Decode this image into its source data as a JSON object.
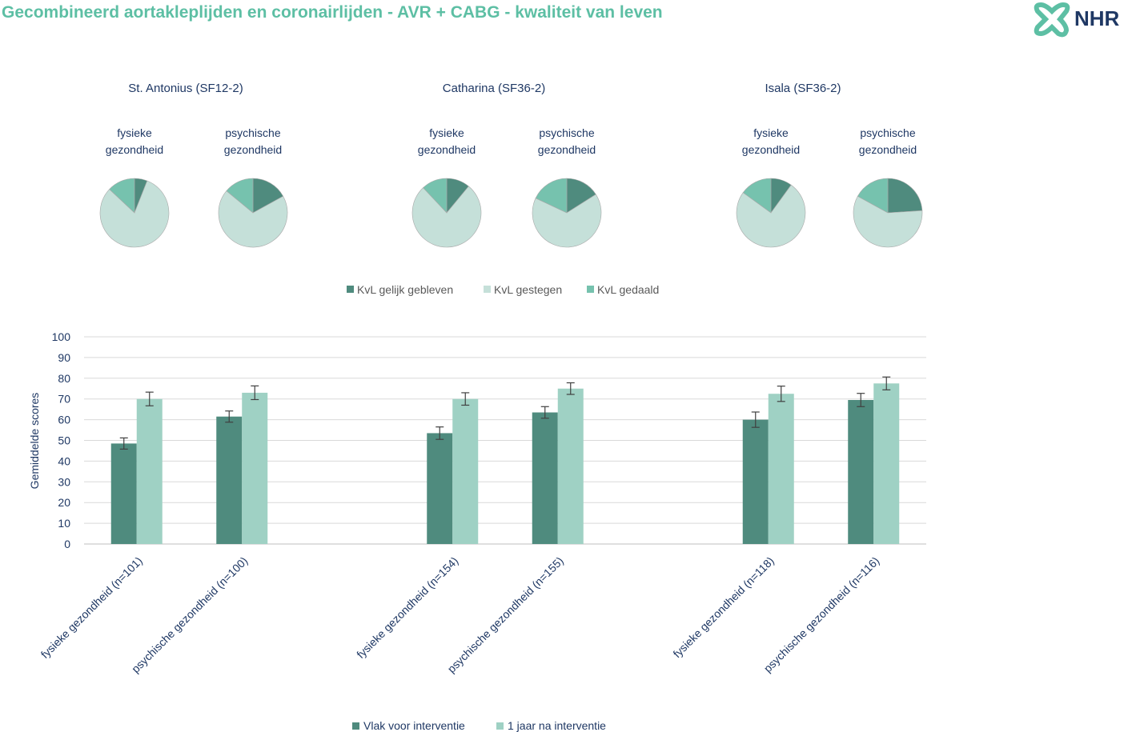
{
  "title": "Gecombineerd aortakleplijden en coronairlijden - AVR + CABG - kwaliteit van leven",
  "logo_text": "NHR",
  "colors": {
    "title": "#5dbfa4",
    "gelijk": "#4f8b7e",
    "gestegen": "#c5e0d9",
    "gedaald": "#76c2ae",
    "vlak_voor": "#4f8b7e",
    "na_1_jaar": "#9fd1c4",
    "text": "#1f3864"
  },
  "chart_data": [
    {
      "type": "pie",
      "legend": [
        "KvL gelijk gebleven",
        "KvL gestegen",
        "KvL gedaald"
      ],
      "legend_position": "bottom",
      "groups": [
        {
          "title": "St. Antonius (SF12-2)",
          "pies": [
            {
              "label_lines": [
                "fysieke",
                "gezondheid"
              ],
              "values": [
                6,
                81,
                13
              ]
            },
            {
              "label_lines": [
                "psychische",
                "gezondheid"
              ],
              "values": [
                17,
                69,
                14
              ]
            }
          ]
        },
        {
          "title": "Catharina (SF36-2)",
          "pies": [
            {
              "label_lines": [
                "fysieke",
                "gezondheid"
              ],
              "values": [
                11,
                77,
                12
              ]
            },
            {
              "label_lines": [
                "psychische",
                "gezondheid"
              ],
              "values": [
                16,
                66,
                18
              ]
            }
          ]
        },
        {
          "title": "Isala (SF36-2)",
          "pies": [
            {
              "label_lines": [
                "fysieke",
                "gezondheid"
              ],
              "values": [
                10,
                75,
                15
              ]
            },
            {
              "label_lines": [
                "psychische",
                "gezondheid"
              ],
              "values": [
                24,
                59,
                17
              ]
            }
          ]
        }
      ]
    },
    {
      "type": "bar",
      "ylabel": "Gemiddelde scores",
      "ylim": [
        0,
        100
      ],
      "ytick_step": 10,
      "grid": true,
      "legend_position": "bottom",
      "categories": [
        "fysieke gezondheid (n=101)",
        "psychische gezondheid (n=100)",
        "fysieke gezondheid (n=154)",
        "psychische gezondheid (n=155)",
        "fysieke gezondheid (n=118)",
        "psychische gezondheid (n=116)"
      ],
      "category_groups": [
        0,
        0,
        1,
        1,
        2,
        2
      ],
      "series": [
        {
          "name": "Vlak voor interventie",
          "values": [
            48.5,
            61.5,
            53.5,
            63.5,
            60,
            69.5
          ],
          "errors": [
            2.7,
            2.7,
            3,
            2.8,
            3.7,
            3.2
          ]
        },
        {
          "name": "1 jaar na interventie",
          "values": [
            70,
            73,
            70,
            75,
            72.5,
            77.5
          ],
          "errors": [
            3.3,
            3.3,
            3,
            2.8,
            3.7,
            3.1
          ]
        }
      ]
    }
  ]
}
